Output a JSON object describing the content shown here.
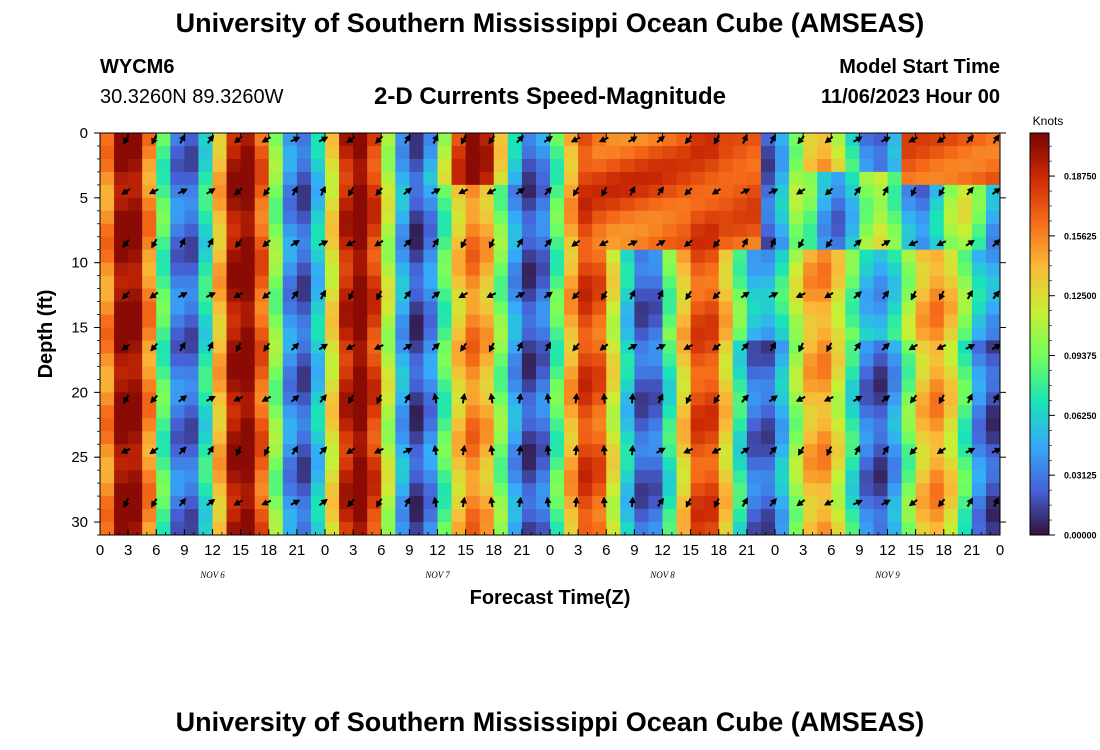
{
  "header": {
    "title": "University of Southern Mississippi Ocean Cube (AMSEAS)",
    "station_id": "WYCM6",
    "coordinates": "30.3260N  89.3260W",
    "subtitle": "2-D Currents Speed-Magnitude",
    "model_start_label": "Model Start Time",
    "model_start_value": "11/06/2023 Hour 00"
  },
  "footer": {
    "title": "University of Southern Mississippi Ocean Cube (AMSEAS)"
  },
  "chart_data": {
    "type": "heatmap",
    "title": "2-D Currents Speed-Magnitude",
    "xlabel": "Forecast Time(Z)",
    "ylabel": "Depth (ft)",
    "xlim": [
      0,
      96
    ],
    "ylim": [
      0,
      31
    ],
    "x_ticks": [
      0,
      3,
      6,
      9,
      12,
      15,
      18,
      21,
      24,
      27,
      30,
      33,
      36,
      39,
      42,
      45,
      48,
      51,
      54,
      57,
      60,
      63,
      66,
      69,
      72,
      75,
      78,
      81,
      84,
      87,
      90,
      93,
      96
    ],
    "x_tick_labels": [
      "0",
      "3",
      "6",
      "9",
      "12",
      "15",
      "18",
      "21",
      "0",
      "3",
      "6",
      "9",
      "12",
      "15",
      "18",
      "21",
      "0",
      "3",
      "6",
      "9",
      "12",
      "15",
      "18",
      "21",
      "0",
      "3",
      "6",
      "9",
      "12",
      "15",
      "18",
      "21",
      "0"
    ],
    "y_ticks": [
      0,
      5,
      10,
      15,
      20,
      25,
      30
    ],
    "y_tick_labels": [
      "0",
      "5",
      "10",
      "15",
      "20",
      "25",
      "30"
    ],
    "day_labels": [
      {
        "x": 12,
        "text": "NOV 6"
      },
      {
        "x": 36,
        "text": "NOV 7"
      },
      {
        "x": 60,
        "text": "NOV 8"
      },
      {
        "x": 84,
        "text": "NOV 9"
      }
    ],
    "colorbar": {
      "units": "Knots",
      "min": 0.0,
      "max": 0.21,
      "ticks": [
        0.0,
        0.03125,
        0.0625,
        0.09375,
        0.125,
        0.15625,
        0.1875
      ],
      "tick_labels": [
        "0.00000",
        "0.03125",
        "0.06250",
        "0.09375",
        "0.12500",
        "0.15625",
        "0.18750"
      ]
    },
    "colors": [
      "#30123b",
      "#4662d7",
      "#36aaf9",
      "#1ae4b6",
      "#72fe5e",
      "#c8ef34",
      "#faba39",
      "#f66b19",
      "#cb2a04",
      "#7a0403"
    ],
    "arrow_times": [
      3,
      6,
      9,
      12,
      15,
      18,
      21,
      24,
      27,
      30,
      33,
      36,
      39,
      42,
      45,
      48,
      51,
      54,
      57,
      60,
      63,
      66,
      69,
      72,
      75,
      78,
      81,
      84,
      87,
      90,
      93,
      96
    ],
    "arrow_depths": [
      0.5,
      4.5,
      8.5,
      12.5,
      16.5,
      20.5,
      24.5,
      28.5
    ]
  }
}
